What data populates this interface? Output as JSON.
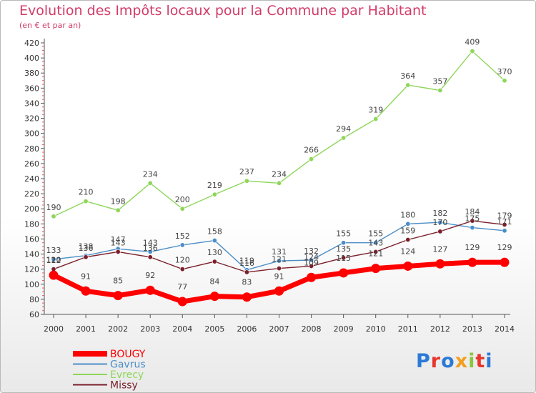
{
  "header": {
    "title": "Evolution des Impôts locaux pour la Commune par Habitant",
    "subtitle": "(en € et par an)"
  },
  "chart_data": {
    "type": "line",
    "title": "Evolution des Impôts locaux pour la Commune par Habitant",
    "subtitle": "(en € et par an)",
    "xlabel": "",
    "ylabel": "",
    "ylim": [
      60,
      420
    ],
    "ytick_step": 20,
    "grid": false,
    "legend_position": "bottom-left",
    "x": [
      "2000",
      "2001",
      "2002",
      "2003",
      "2004",
      "2005",
      "2006",
      "2007",
      "2008",
      "2009",
      "2010",
      "2011",
      "2012",
      "2013",
      "2014"
    ],
    "series": [
      {
        "name": "BOUGY",
        "color": "#ff0000",
        "emphasis": true,
        "values": [
          112,
          91,
          85,
          92,
          77,
          84,
          83,
          91,
          109,
          115,
          121,
          124,
          127,
          129,
          129
        ],
        "labels": [
          "112",
          "91",
          "85",
          "92",
          "77",
          "84",
          "83",
          "91",
          "109",
          "115",
          "121",
          "124",
          "127",
          "129",
          "129"
        ]
      },
      {
        "name": "Gavrus",
        "color": "#4b8ec7",
        "emphasis": false,
        "values": [
          133,
          138,
          147,
          143,
          152,
          158,
          119,
          131,
          132,
          155,
          155,
          180,
          182,
          175,
          171
        ],
        "labels": [
          "133",
          "138",
          "147",
          "143",
          "152",
          "158",
          "119",
          "131",
          "132",
          "155",
          "155",
          "180",
          "182",
          "175",
          "171"
        ]
      },
      {
        "name": "Evrecy",
        "color": "#8ed65a",
        "emphasis": false,
        "values": [
          190,
          210,
          198,
          234,
          200,
          219,
          237,
          234,
          266,
          294,
          319,
          364,
          357,
          409,
          370
        ],
        "labels": [
          "190",
          "210",
          "198",
          "234",
          "200",
          "219",
          "237",
          "234",
          "266",
          "294",
          "319",
          "364",
          "357",
          "409",
          "370"
        ]
      },
      {
        "name": "Missy",
        "color": "#7b1f2b",
        "emphasis": false,
        "values": [
          120,
          136,
          143,
          136,
          120,
          130,
          116,
          121,
          124,
          135,
          143,
          159,
          170,
          184,
          179
        ],
        "labels": [
          "120",
          "136",
          "143",
          "136",
          "120",
          "130",
          "116",
          "121",
          "124",
          "135",
          "143",
          "159",
          "170",
          "184",
          "179"
        ]
      }
    ]
  },
  "legend": {
    "items": [
      {
        "label": "BOUGY",
        "color": "#ff0000"
      },
      {
        "label": "Gavrus",
        "color": "#4b8ec7"
      },
      {
        "label": "Evrecy",
        "color": "#8ed65a"
      },
      {
        "label": "Missy",
        "color": "#7b1f2b"
      }
    ]
  },
  "logo": {
    "text": "Proxiti",
    "letter_colors": [
      "#2b7ad6",
      "#e8352d",
      "#2b7ad6",
      "#f29f1f",
      "#8cc63f",
      "#e8352d",
      "#2b7ad6"
    ]
  }
}
